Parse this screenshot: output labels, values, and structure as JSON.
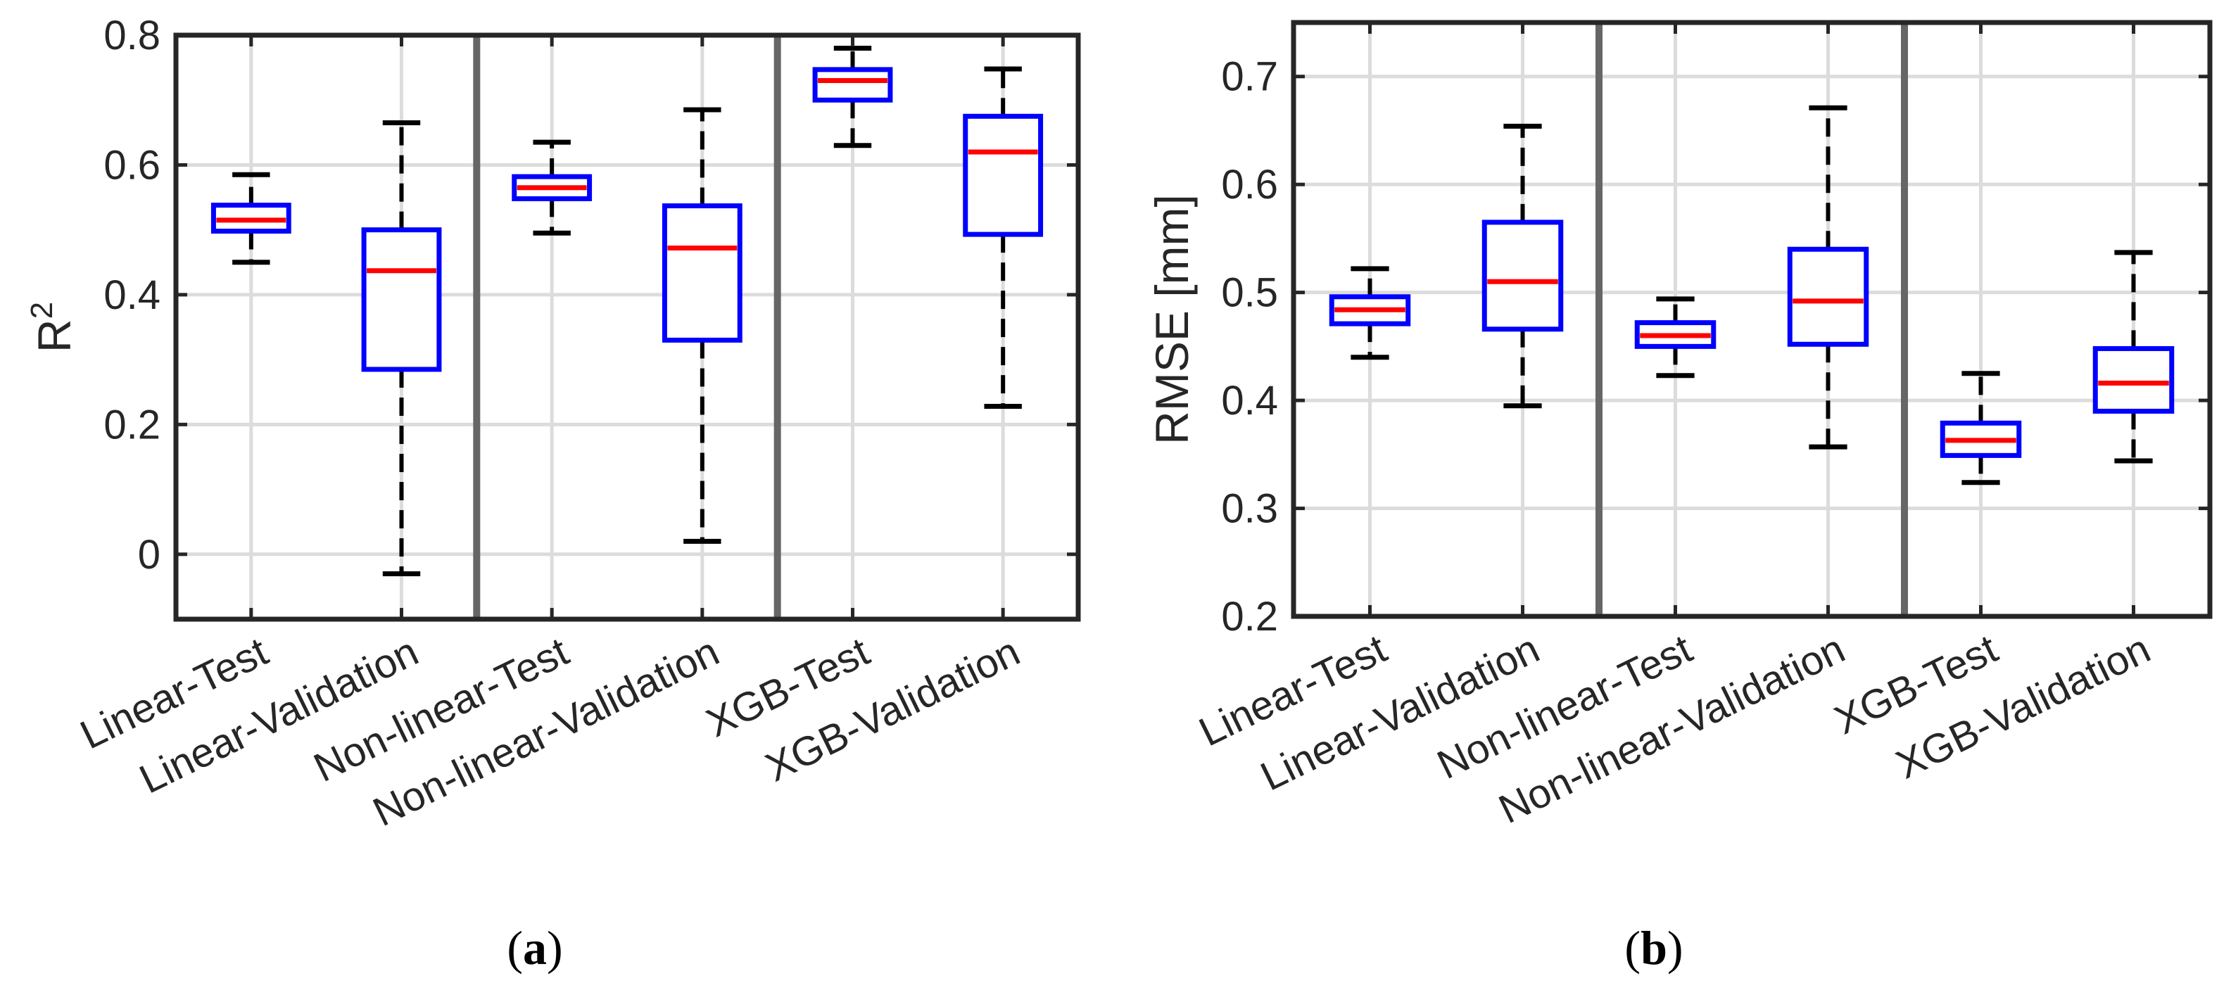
{
  "chart_data": [
    {
      "id": "a",
      "type": "boxplot",
      "panel_label": "(a)",
      "panel_letter": "a",
      "ylabel_base": "R",
      "ylabel_sup": "2",
      "ylim": [
        -0.1,
        0.8
      ],
      "yticks": [
        0,
        0.2,
        0.4,
        0.6,
        0.8
      ],
      "ytick_labels": [
        "0",
        "0.2",
        "0.4",
        "0.6",
        "0.8"
      ],
      "grid": true,
      "group_separators_after": [
        2,
        4
      ],
      "categories": [
        "Linear-Test",
        "Linear-Validation",
        "Non-linear-Test",
        "Non-linear-Validation",
        "XGB-Test",
        "XGB-Validation"
      ],
      "boxes": [
        {
          "whisker_low": 0.45,
          "q1": 0.498,
          "median": 0.515,
          "q3": 0.538,
          "whisker_high": 0.585
        },
        {
          "whisker_low": -0.03,
          "q1": 0.285,
          "median": 0.437,
          "q3": 0.5,
          "whisker_high": 0.665
        },
        {
          "whisker_low": 0.495,
          "q1": 0.548,
          "median": 0.565,
          "q3": 0.582,
          "whisker_high": 0.635
        },
        {
          "whisker_low": 0.02,
          "q1": 0.33,
          "median": 0.472,
          "q3": 0.537,
          "whisker_high": 0.685
        },
        {
          "whisker_low": 0.63,
          "q1": 0.7,
          "median": 0.73,
          "q3": 0.747,
          "whisker_high": 0.78
        },
        {
          "whisker_low": 0.228,
          "q1": 0.493,
          "median": 0.62,
          "q3": 0.675,
          "whisker_high": 0.748
        }
      ]
    },
    {
      "id": "b",
      "type": "boxplot",
      "panel_label": "(b)",
      "panel_letter": "b",
      "ylabel": "RMSE [mm]",
      "ylim": [
        0.2,
        0.75
      ],
      "yticks": [
        0.2,
        0.3,
        0.4,
        0.5,
        0.6,
        0.7
      ],
      "ytick_labels": [
        "0.2",
        "0.3",
        "0.4",
        "0.5",
        "0.6",
        "0.7"
      ],
      "grid": true,
      "group_separators_after": [
        2,
        4
      ],
      "categories": [
        "Linear-Test",
        "Linear-Validation",
        "Non-linear-Test",
        "Non-linear-Validation",
        "XGB-Test",
        "XGB-Validation"
      ],
      "boxes": [
        {
          "whisker_low": 0.44,
          "q1": 0.471,
          "median": 0.484,
          "q3": 0.496,
          "whisker_high": 0.522
        },
        {
          "whisker_low": 0.395,
          "q1": 0.466,
          "median": 0.51,
          "q3": 0.565,
          "whisker_high": 0.654
        },
        {
          "whisker_low": 0.423,
          "q1": 0.45,
          "median": 0.46,
          "q3": 0.472,
          "whisker_high": 0.494
        },
        {
          "whisker_low": 0.357,
          "q1": 0.452,
          "median": 0.492,
          "q3": 0.54,
          "whisker_high": 0.671
        },
        {
          "whisker_low": 0.324,
          "q1": 0.349,
          "median": 0.363,
          "q3": 0.379,
          "whisker_high": 0.425
        },
        {
          "whisker_low": 0.344,
          "q1": 0.39,
          "median": 0.416,
          "q3": 0.448,
          "whisker_high": 0.537
        }
      ]
    }
  ]
}
